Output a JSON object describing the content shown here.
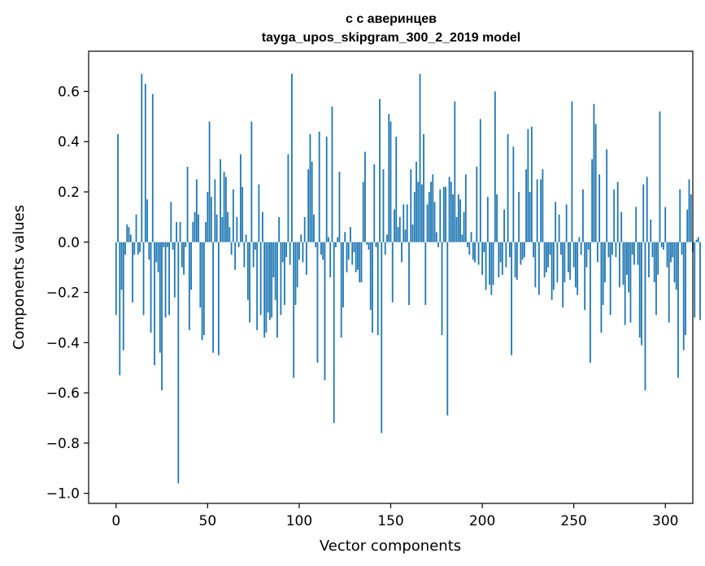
{
  "chart_data": {
    "type": "bar",
    "title": "с с аверинцев",
    "subtitle": "tayga_upos_skipgram_300_2_2019 model",
    "xlabel": "Vector components",
    "ylabel": "Components values",
    "xlim": [
      -15,
      315
    ],
    "ylim": [
      -1.04,
      0.76
    ],
    "x_ticks": [
      0,
      50,
      100,
      150,
      200,
      250,
      300
    ],
    "x_tick_labels": [
      "0",
      "50",
      "100",
      "150",
      "200",
      "250",
      "300"
    ],
    "y_ticks": [
      -1.0,
      -0.8,
      -0.6,
      -0.4,
      -0.2,
      0.0,
      0.2,
      0.4,
      0.6
    ],
    "y_tick_labels": [
      "−1.0",
      "−0.8",
      "−0.6",
      "−0.4",
      "−0.2",
      "0.0",
      "0.2",
      "0.4",
      "0.6"
    ],
    "bar_color": "#1f77b4",
    "bar_width": 0.8,
    "categories_start": 0,
    "values": [
      -0.29,
      0.43,
      -0.53,
      -0.19,
      -0.43,
      -0.05,
      0.07,
      0.06,
      0.03,
      -0.24,
      -0.05,
      0.11,
      -0.05,
      -0.04,
      0.67,
      -0.29,
      0.63,
      0.17,
      -0.07,
      -0.36,
      0.59,
      -0.49,
      -0.08,
      -0.12,
      -0.44,
      -0.59,
      -0.02,
      -0.3,
      -0.02,
      -0.29,
      0.16,
      -0.03,
      -0.22,
      0.08,
      -0.96,
      0.08,
      -0.1,
      -0.13,
      -0.02,
      0.3,
      -0.35,
      -0.19,
      0.08,
      0.12,
      0.25,
      0.11,
      -0.26,
      -0.39,
      -0.37,
      0.08,
      0.2,
      0.48,
      0.18,
      -0.44,
      0.25,
      0.11,
      -0.45,
      0.33,
      0.1,
      0.28,
      0.26,
      0.12,
      0.06,
      -0.05,
      0.21,
      -0.11,
      0.1,
      -0.02,
      0.35,
      0.22,
      -0.1,
      0.03,
      -0.23,
      -0.32,
      0.48,
      -0.1,
      -0.03,
      -0.35,
      0.23,
      -0.29,
      0.12,
      -0.38,
      -0.36,
      -0.28,
      -0.31,
      -0.3,
      -0.14,
      -0.23,
      -0.38,
      0.1,
      -0.29,
      -0.08,
      -0.25,
      -0.06,
      0.35,
      -0.09,
      0.67,
      -0.54,
      -0.25,
      -0.18,
      -0.07,
      0.03,
      -0.08,
      0.1,
      -0.13,
      0.29,
      0.43,
      0.32,
      0.11,
      -0.02,
      -0.48,
      0.44,
      -0.05,
      -0.07,
      -0.55,
      0.42,
      0.02,
      -0.14,
      0.54,
      -0.72,
      -0.02,
      0.02,
      0.28,
      -0.38,
      -0.26,
      0.04,
      -0.12,
      -0.07,
      0.06,
      -0.09,
      -0.04,
      -0.12,
      -0.11,
      -0.16,
      -0.16,
      0.24,
      0.36,
      -0.01,
      -0.03,
      -0.27,
      -0.36,
      0.31,
      -0.02,
      -0.37,
      0.57,
      -0.76,
      0.29,
      -0.05,
      0.03,
      0.51,
      0.48,
      -0.24,
      0.13,
      0.42,
      0.06,
      0.1,
      -0.08,
      0.15,
      0.05,
      0.15,
      -0.25,
      0.29,
      0.07,
      0.2,
      0.32,
      0.24,
      0.67,
      0.23,
      0.43,
      -0.25,
      0.15,
      0.2,
      0.24,
      0.27,
      0.16,
      0.04,
      -0.02,
      0.21,
      -0.37,
      0.22,
      0.22,
      -0.69,
      0.26,
      0.24,
      0.19,
      0.56,
      0.1,
      0.19,
      0.17,
      0.03,
      0.12,
      0.27,
      -0.02,
      -0.05,
      0.04,
      -0.07,
      -0.08,
      0.3,
      -0.09,
      0.49,
      -0.13,
      -0.04,
      -0.19,
      0.18,
      -0.17,
      -0.21,
      -0.17,
      0.6,
      0.19,
      -0.14,
      -0.08,
      -0.13,
      0.13,
      -0.1,
      0.43,
      -0.06,
      -0.45,
      0.38,
      -0.14,
      -0.15,
      0.2,
      -0.09,
      -0.07,
      -0.06,
      0.29,
      0.45,
      0.2,
      0.46,
      -0.06,
      -0.18,
      0.25,
      -0.21,
      0.25,
      0.29,
      -0.14,
      -0.12,
      -0.1,
      -0.05,
      -0.23,
      -0.19,
      0.16,
      -0.16,
      0.11,
      -0.05,
      -0.26,
      -0.16,
      0.15,
      -0.12,
      -0.15,
      0.56,
      -0.1,
      -0.18,
      -0.21,
      0.02,
      -0.05,
      0.21,
      -0.27,
      -0.1,
      -0.03,
      -0.48,
      0.33,
      0.55,
      0.47,
      -0.08,
      0.27,
      -0.36,
      -0.25,
      -0.16,
      0.37,
      -0.06,
      -0.29,
      -0.05,
      0.21,
      -0.06,
      0.24,
      -0.18,
      0.12,
      -0.17,
      -0.33,
      -0.13,
      -0.2,
      -0.32,
      -0.05,
      -0.09,
      0.14,
      -0.09,
      -0.38,
      -0.41,
      0.23,
      -0.59,
      0.26,
      -0.14,
      0.09,
      -0.06,
      -0.16,
      -0.29,
      -0.13,
      0.52,
      -0.02,
      -0.03,
      0.14,
      -0.1,
      -0.32,
      -0.08,
      -0.06,
      -0.16,
      -0.19,
      -0.54,
      0.21,
      -0.05,
      -0.43,
      -0.37,
      0.13,
      0.25,
      0.19,
      -0.04,
      -0.3,
      0.01,
      0.02,
      -0.31
    ]
  }
}
